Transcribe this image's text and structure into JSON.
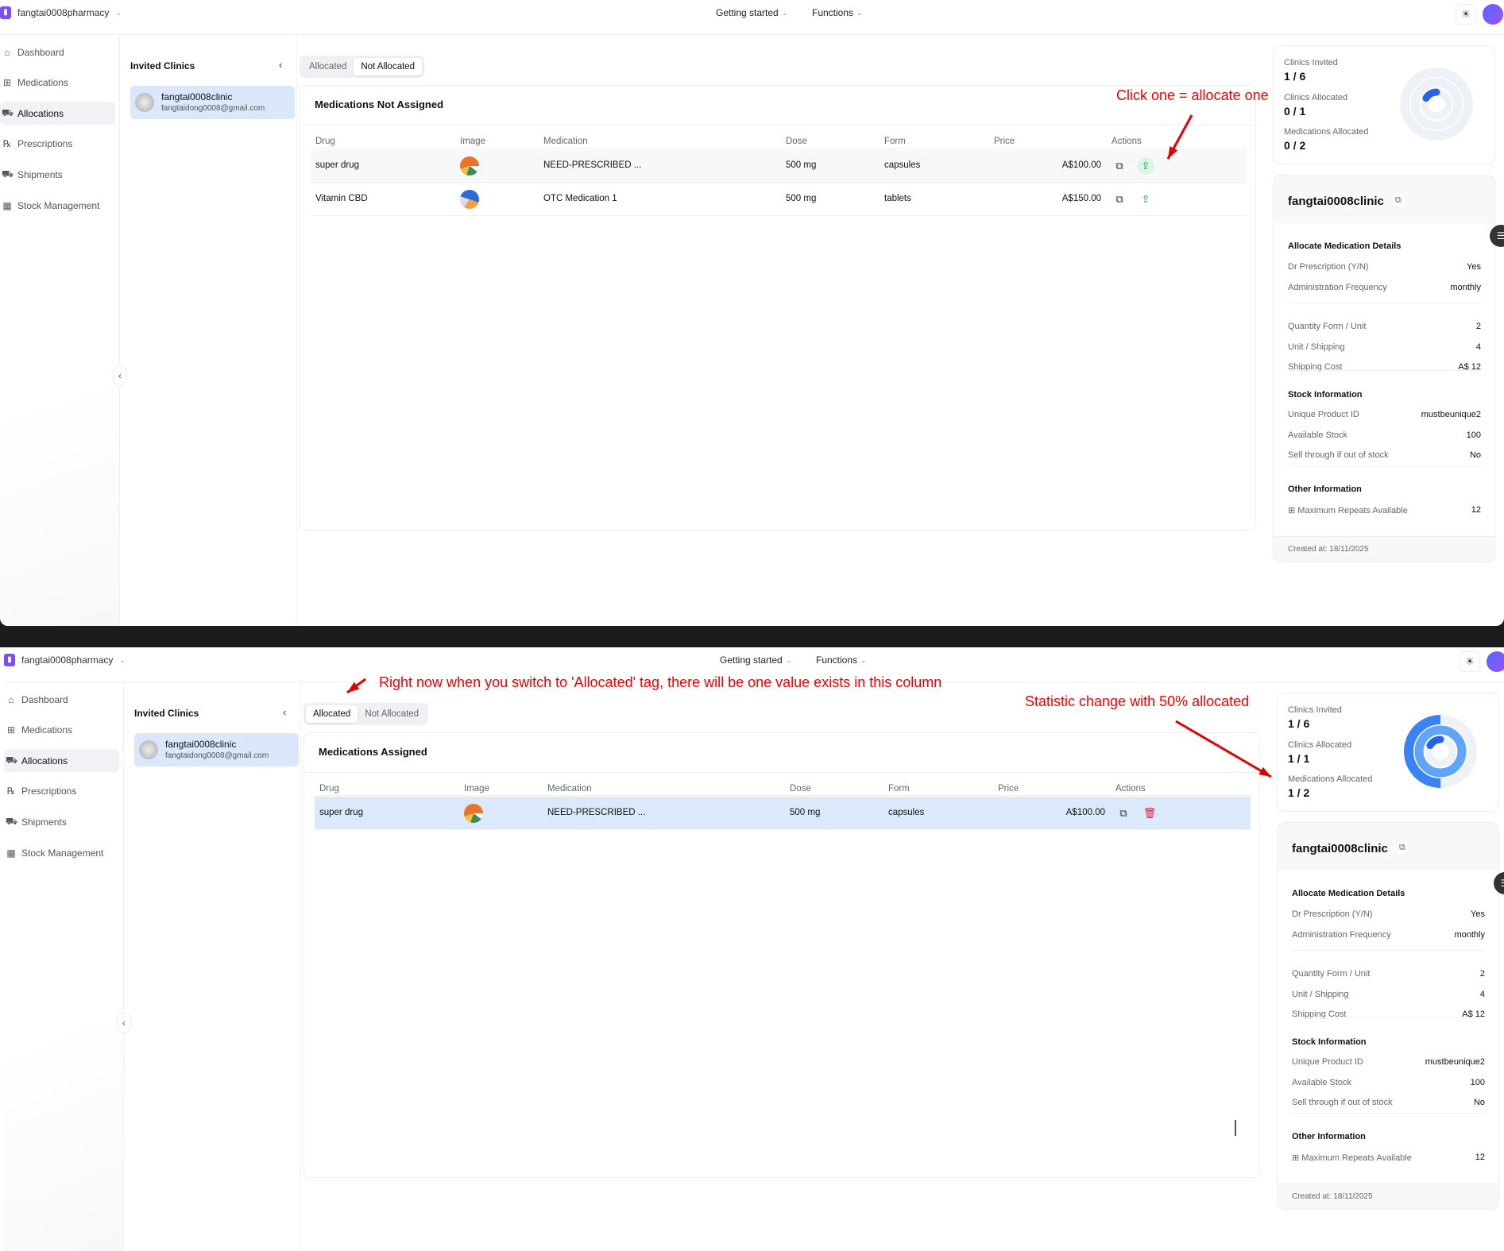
{
  "app": {
    "brand": "fangtai0008pharmacy",
    "nav": [
      "Getting started",
      "Functions"
    ],
    "sidebar": [
      {
        "label": "Dashboard",
        "icon": "home-icon"
      },
      {
        "label": "Medications",
        "icon": "medication-icon"
      },
      {
        "label": "Allocations",
        "icon": "truck-icon",
        "active": true
      },
      {
        "label": "Prescriptions",
        "icon": "rx-icon"
      },
      {
        "label": "Shipments",
        "icon": "shipment-icon"
      },
      {
        "label": "Stock Management",
        "icon": "stock-icon"
      }
    ],
    "clinics_title": "Invited Clinics",
    "clinic": {
      "name": "fangtai0008clinic",
      "email": "fangtaidong0008@gmail.com"
    },
    "tabs": [
      "Allocated",
      "Not Allocated"
    ],
    "columns": [
      "Drug",
      "Image",
      "Medication",
      "Dose",
      "Form",
      "Price",
      "Actions"
    ],
    "stat_labels": [
      "Clinics Invited",
      "Clinics Allocated",
      "Medications Allocated"
    ],
    "details": {
      "name": "fangtai0008clinic",
      "section1": "Allocate Medication Details",
      "rows1": [
        {
          "k": "Dr Prescription (Y/N)",
          "v": "Yes"
        },
        {
          "k": "Administration Frequency",
          "v": "monthly"
        }
      ],
      "rows2": [
        {
          "k": "Quantity Form / Unit",
          "v": "2"
        },
        {
          "k": "Unit / Shipping",
          "v": "4"
        },
        {
          "k": "Shipping Cost",
          "v": "A$ 12"
        }
      ],
      "section2": "Stock Information",
      "rows3": [
        {
          "k": "Unique Product ID",
          "v": "mustbeunique2"
        },
        {
          "k": "Available Stock",
          "v": "100"
        },
        {
          "k": "Sell through if out of stock",
          "v": "No"
        }
      ],
      "section3": "Other Information",
      "rows4": [
        {
          "k": "Maximum Repeats Available",
          "v": "12"
        }
      ],
      "created": "Created at: 18/11/2025"
    },
    "colors": {
      "accent": "#3b82f6",
      "accent_light": "#60a5fa",
      "annotation": "#e00000",
      "allocate": "#16a34a",
      "delete": "#e11d48"
    }
  },
  "panels": [
    {
      "active_tab": 1,
      "table_title": "Medications Not Assigned",
      "rows": [
        {
          "drug": "super drug",
          "medication": "NEED-PRESCRIBED ...",
          "dose": "500 mg",
          "form": "capsules",
          "price": "A$100.00",
          "action": "allocate",
          "hover": true
        },
        {
          "drug": "Vitamin CBD",
          "medication": "OTC Medication 1",
          "dose": "500 mg",
          "form": "tablets",
          "price": "A$150.00",
          "action": "allocate"
        }
      ],
      "stats": [
        {
          "value": "1 / 6",
          "num": 1,
          "den": 6
        },
        {
          "value": "0 / 1",
          "num": 0,
          "den": 1
        },
        {
          "value": "0 / 2",
          "num": 0,
          "den": 2
        }
      ],
      "annotations": [
        "Click one = allocate one"
      ]
    },
    {
      "active_tab": 0,
      "table_title": "Medications Assigned",
      "rows": [
        {
          "drug": "super drug",
          "medication": "NEED-PRESCRIBED ...",
          "dose": "500 mg",
          "form": "capsules",
          "price": "A$100.00",
          "action": "delete",
          "selected": true
        }
      ],
      "stats": [
        {
          "value": "1 / 6",
          "num": 1,
          "den": 6
        },
        {
          "value": "1 / 1",
          "num": 1,
          "den": 1
        },
        {
          "value": "1 / 2",
          "num": 1,
          "den": 2
        }
      ],
      "annotations": [
        "Right now when you switch to 'Allocated' tag, there will be one value exists in this column",
        "Statistic change with 50% allocated"
      ]
    }
  ]
}
